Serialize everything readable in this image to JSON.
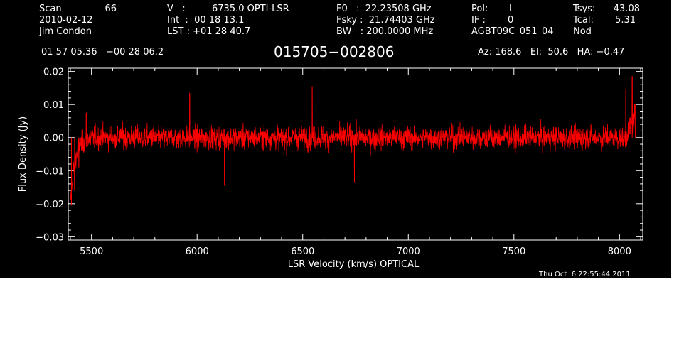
{
  "header": {
    "scan_label": "Scan",
    "scan_value": "66",
    "date": "2010-02-12",
    "observer": "Jim Condon",
    "v_label": "V   :",
    "v_value": "6735.0 OPTI-LSR",
    "int_text": "Int  :  00 18 13.1",
    "lst_text": "LST : +01 28 40.7",
    "f0_text": "F0   :  22.23508 GHz",
    "fsky_text": "Fsky :  21.74403 GHz",
    "bw_text": "BW   : 200.0000 MHz",
    "pol_label": "Pol:",
    "pol_value": "I",
    "if_label": "IF :",
    "if_value": "0",
    "project": "AGBT09C_051_04",
    "tsys_label": "Tsys:",
    "tsys_value": "43.08",
    "tcal_label": "Tcal:",
    "tcal_value": "5.31",
    "procedure": "Nod",
    "coords": "01 57 05.36   −00 28 06.2",
    "source_name": "015705−002806",
    "az_el_ha": "Az: 168.6   El:  50.6   HA: −0.47",
    "timestamp": "Thu Oct  6 22:55:44 2011"
  },
  "chart_data": {
    "type": "line",
    "xlabel": "LSR Velocity (km/s) OPTICAL",
    "ylabel": "Flux Density (Jy)",
    "xlim": [
      5390,
      8110
    ],
    "ylim": [
      -0.031,
      0.021
    ],
    "xticks": [
      5500,
      6000,
      6500,
      7000,
      7500,
      8000
    ],
    "xtick_labels": [
      "5500",
      "6000",
      "6500",
      "7000",
      "7500",
      "8000"
    ],
    "yticks": [
      0.02,
      0.01,
      0.0,
      -0.01,
      -0.02,
      -0.03
    ],
    "ytick_labels": [
      "0.02",
      "0.01",
      "0.00",
      "−0.01",
      "−0.02",
      "−0.03"
    ],
    "series": [
      {
        "color": "#ff0000",
        "x_range": [
          5400,
          8075
        ],
        "noise_rms_jy": 0.0033,
        "baseline_jy": 0.0,
        "features": [
          {
            "x": 5405,
            "y": -0.0205
          },
          {
            "x": 5420,
            "y": -0.016
          },
          {
            "x": 5440,
            "y": -0.009
          },
          {
            "x": 5460,
            "y": -0.004
          },
          {
            "x": 5475,
            "y": 0.0075
          },
          {
            "x": 5965,
            "y": 0.0135
          },
          {
            "x": 6130,
            "y": -0.0145
          },
          {
            "x": 6545,
            "y": 0.0155
          },
          {
            "x": 6745,
            "y": -0.0135
          },
          {
            "x": 8030,
            "y": 0.0145
          },
          {
            "x": 8060,
            "y": 0.0185
          },
          {
            "x": 8075,
            "y": 0.0025
          }
        ]
      }
    ]
  },
  "colors": {
    "background": "#000000",
    "foreground": "#ffffff",
    "trace": "#ff0000",
    "page": "#ffffff"
  }
}
